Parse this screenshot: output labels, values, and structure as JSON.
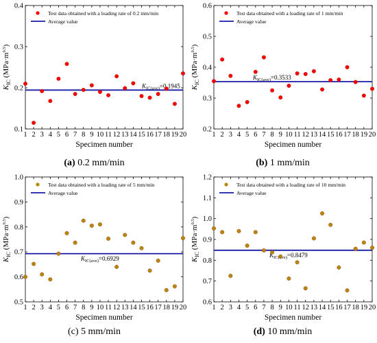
{
  "chart_data": [
    {
      "type": "scatter",
      "panel_id": "a",
      "caption_letter": "(a)",
      "caption_text": " 0.2 mm/min",
      "xlabel": "Specimen number",
      "ylabel": "K_IC (MPa·m^0.5)",
      "ylim": [
        0.1,
        0.4
      ],
      "yticks": [
        "0.1",
        "0.2",
        "0.3",
        "0.4"
      ],
      "ytick_values": [
        0.1,
        0.2,
        0.3,
        0.4
      ],
      "xlim": [
        1,
        20
      ],
      "xticks": [
        "1",
        "2",
        "3",
        "4",
        "5",
        "6",
        "7",
        "8",
        "9",
        "10",
        "11",
        "12",
        "13",
        "14",
        "15",
        "16",
        "17",
        "18",
        "19",
        "20"
      ],
      "x": [
        1,
        2,
        3,
        4,
        5,
        6,
        7,
        8,
        9,
        10,
        11,
        12,
        13,
        14,
        15,
        16,
        17,
        18,
        19,
        20
      ],
      "values": [
        0.21,
        0.115,
        0.192,
        0.168,
        0.222,
        0.258,
        0.185,
        0.195,
        0.206,
        0.19,
        0.182,
        0.228,
        0.199,
        0.211,
        0.18,
        0.176,
        0.185,
        0.198,
        0.161,
        0.235
      ],
      "average": 0.1945,
      "average_label_main": "K",
      "average_label_sub": "IC(ave)",
      "average_label_value": "=0.1945",
      "marker_color": "#ff0000",
      "line_color": "#1a1aa6",
      "legend": [
        "Test data obtained with a loading rate of 0.2 mm/min",
        "Average value"
      ],
      "grid": false,
      "legend_position": "top-right"
    },
    {
      "type": "scatter",
      "panel_id": "b",
      "caption_letter": "(b)",
      "caption_text": " 1 mm/min",
      "xlabel": "Specimen number",
      "ylabel": "K_IC (MPa·m^0.5)",
      "ylim": [
        0.2,
        0.6
      ],
      "yticks": [
        "0.2",
        "0.3",
        "0.4",
        "0.5",
        "0.6"
      ],
      "ytick_values": [
        0.2,
        0.3,
        0.4,
        0.5,
        0.6
      ],
      "xlim": [
        1,
        20
      ],
      "xticks": [
        "1",
        "2",
        "3",
        "4",
        "5",
        "6",
        "7",
        "8",
        "9",
        "10",
        "11",
        "12",
        "13",
        "14",
        "15",
        "16",
        "17",
        "18",
        "19",
        "20"
      ],
      "x": [
        1,
        2,
        3,
        4,
        5,
        6,
        7,
        8,
        9,
        10,
        11,
        12,
        13,
        14,
        15,
        16,
        17,
        18,
        19,
        20
      ],
      "values": [
        0.355,
        0.425,
        0.372,
        0.275,
        0.287,
        0.385,
        0.432,
        0.325,
        0.302,
        0.34,
        0.38,
        0.378,
        0.387,
        0.328,
        0.358,
        0.36,
        0.4,
        0.352,
        0.308,
        0.33
      ],
      "average": 0.3533,
      "average_label_main": "K",
      "average_label_sub": "IC(ave)",
      "average_label_value": "=0.3533",
      "marker_color": "#ff0000",
      "line_color": "#1a1aa6",
      "legend": [
        "Test data obtained with a loading rate of 1 mm/min",
        "Average value"
      ],
      "grid": false,
      "legend_position": "top-right"
    },
    {
      "type": "scatter",
      "panel_id": "c",
      "caption_letter": "(c)",
      "caption_text": " 5 mm/min",
      "xlabel": "Specimen number",
      "ylabel": "K_IC (MPa·m^0.5)",
      "ylim": [
        0.5,
        1.0
      ],
      "yticks": [
        "0.5",
        "0.6",
        "0.7",
        "0.8",
        "0.9",
        "1.0"
      ],
      "ytick_values": [
        0.5,
        0.6,
        0.7,
        0.8,
        0.9,
        1.0
      ],
      "xlim": [
        1,
        20
      ],
      "xticks": [
        "1",
        "2",
        "3",
        "4",
        "5",
        "6",
        "7",
        "8",
        "9",
        "10",
        "11",
        "12",
        "13",
        "14",
        "15",
        "16",
        "17",
        "18",
        "19",
        "20"
      ],
      "x": [
        1,
        2,
        3,
        4,
        5,
        6,
        7,
        8,
        9,
        10,
        11,
        12,
        13,
        14,
        15,
        16,
        17,
        18,
        19,
        20
      ],
      "values": [
        0.6,
        0.652,
        0.61,
        0.59,
        0.693,
        0.775,
        0.737,
        0.825,
        0.805,
        0.81,
        0.753,
        0.64,
        0.768,
        0.737,
        0.715,
        0.625,
        0.665,
        0.547,
        0.562,
        0.755
      ],
      "average": 0.6929,
      "average_label_main": "K",
      "average_label_sub": "IC(ave)",
      "average_label_value": "=0.6929",
      "marker_color": "#b8860b",
      "line_color": "#1a1aa6",
      "legend": [
        "Test data obtained with a loading rate of 5 mm/min",
        "Average value"
      ],
      "grid": false,
      "legend_position": "top-right"
    },
    {
      "type": "scatter",
      "panel_id": "d",
      "caption_letter": "(d)",
      "caption_text": " 10 mm/min",
      "xlabel": "Specimen number",
      "ylabel": "K_IC (MPa·m^0.5)",
      "ylim": [
        0.6,
        1.2
      ],
      "yticks": [
        "0.6",
        "0.7",
        "0.8",
        "0.9",
        "1.0",
        "1.1",
        "1.2"
      ],
      "ytick_values": [
        0.6,
        0.7,
        0.8,
        0.9,
        1.0,
        1.1,
        1.2
      ],
      "xlim": [
        1,
        20
      ],
      "xticks": [
        "1",
        "2",
        "3",
        "4",
        "5",
        "6",
        "7",
        "8",
        "9",
        "10",
        "11",
        "12",
        "13",
        "14",
        "15",
        "16",
        "17",
        "18",
        "19",
        "20"
      ],
      "x": [
        1,
        2,
        3,
        4,
        5,
        6,
        7,
        8,
        9,
        10,
        11,
        12,
        13,
        14,
        15,
        16,
        17,
        18,
        19,
        20
      ],
      "values": [
        0.953,
        0.935,
        0.725,
        0.94,
        0.87,
        0.935,
        0.847,
        0.838,
        0.818,
        0.712,
        0.79,
        0.665,
        0.905,
        1.025,
        0.97,
        0.765,
        0.655,
        0.855,
        0.885,
        0.86
      ],
      "average": 0.8479,
      "average_label_main": "K",
      "average_label_sub": "IC(ave)",
      "average_label_value": "=0.8479",
      "marker_color": "#b8860b",
      "line_color": "#1a1aa6",
      "legend": [
        "Test data obtained with a loading rate of 10 mm/min",
        "Average value"
      ],
      "grid": false,
      "legend_position": "top-right"
    }
  ]
}
